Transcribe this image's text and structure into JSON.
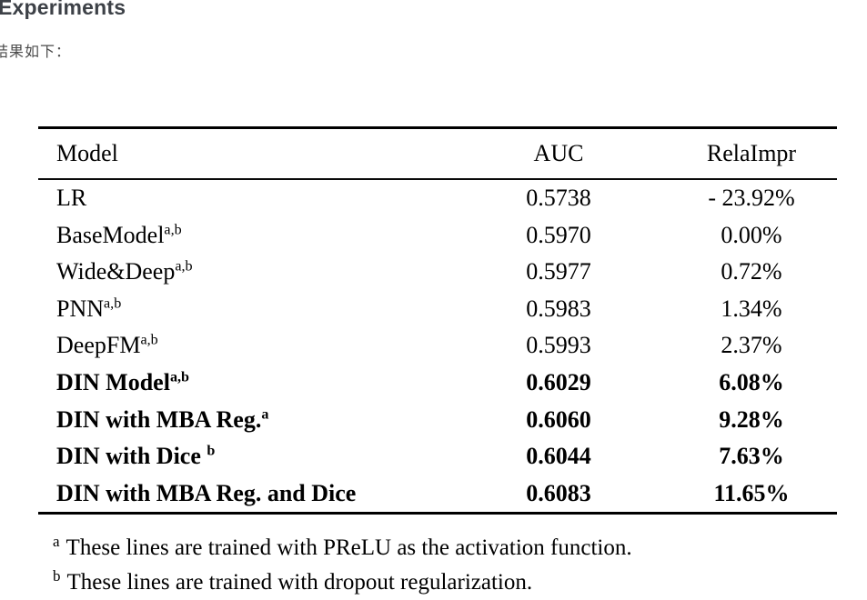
{
  "page": {
    "heading": "Experiments",
    "intro_text": "结果如下："
  },
  "colors": {
    "heading_text": "#3d4147",
    "intro_text": "#4b4b4b",
    "table_text": "#000000",
    "background": "#ffffff"
  },
  "table": {
    "columns": [
      "Model",
      "AUC",
      "RelaImpr"
    ],
    "rows": [
      {
        "model": "LR",
        "sup": "",
        "auc": "0.5738",
        "relaimpr": "- 23.92%",
        "bold": false
      },
      {
        "model": "BaseModel",
        "sup": "a,b",
        "auc": "0.5970",
        "relaimpr": "0.00%",
        "bold": false
      },
      {
        "model": "Wide&Deep",
        "sup": "a,b",
        "auc": "0.5977",
        "relaimpr": "0.72%",
        "bold": false
      },
      {
        "model": "PNN",
        "sup": "a,b",
        "auc": "0.5983",
        "relaimpr": "1.34%",
        "bold": false
      },
      {
        "model": "DeepFM",
        "sup": "a,b",
        "auc": "0.5993",
        "relaimpr": "2.37%",
        "bold": false
      },
      {
        "model": "DIN Model",
        "sup": "a,b",
        "auc": "0.6029",
        "relaimpr": "6.08%",
        "bold": true
      },
      {
        "model": "DIN with MBA Reg.",
        "sup": "a",
        "auc": "0.6060",
        "relaimpr": "9.28%",
        "bold": true
      },
      {
        "model": "DIN with Dice ",
        "sup": "b",
        "auc": "0.6044",
        "relaimpr": "7.63%",
        "bold": true
      },
      {
        "model": "DIN with MBA Reg. and Dice",
        "sup": "",
        "auc": "0.6083",
        "relaimpr": "11.65%",
        "bold": true
      }
    ],
    "footnotes": [
      {
        "marker": "a",
        "text": "These lines are trained with PReLU as the activation function."
      },
      {
        "marker": "b",
        "text": "These lines are trained with dropout regularization."
      }
    ]
  }
}
